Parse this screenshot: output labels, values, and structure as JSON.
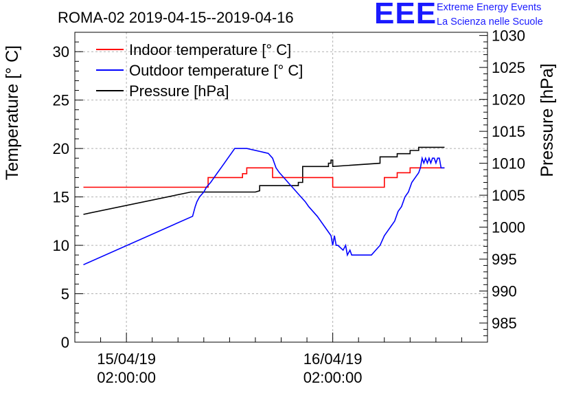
{
  "branding": {
    "letters": "EEE",
    "line1": "Extreme Energy Events",
    "line2": "La Scienza nelle Scuole",
    "color": "#1a1aff"
  },
  "chart_data": {
    "type": "line",
    "title": "ROMA-02 2019-04-15--2019-04-16",
    "ylabel": "Temperature [° C]",
    "y2label": "Pressure [hPa]",
    "ylim": [
      0,
      32
    ],
    "y2lim": [
      982,
      1030.5
    ],
    "yticks": [
      0,
      5,
      10,
      15,
      20,
      25,
      30
    ],
    "y2ticks": [
      985,
      990,
      995,
      1000,
      1005,
      1010,
      1015,
      1020,
      1025,
      1030
    ],
    "xlim": [
      -6,
      42
    ],
    "x_unit": "hours from 15/04/19 02:00:00",
    "xticks": [
      {
        "x": 0,
        "date": "15/04/19",
        "time": "02:00:00"
      },
      {
        "x": 24,
        "date": "16/04/19",
        "time": "02:00:00"
      }
    ],
    "grid": true,
    "legend_position": "top-left",
    "series": [
      {
        "name": "Indoor temperature [° C]",
        "axis": "left",
        "color": "#ff0000",
        "x": [
          -5,
          4,
          9.5,
          9.5,
          13.5,
          13.5,
          14,
          14,
          17,
          17,
          24,
          24,
          24.5,
          24.5,
          30,
          30,
          31.5,
          31.5,
          33,
          33,
          37
        ],
        "y": [
          16,
          16,
          16,
          17,
          17,
          17.4,
          17.4,
          18,
          18,
          17,
          17,
          16,
          16,
          16,
          16,
          17,
          17,
          17.5,
          17.5,
          18,
          18
        ]
      },
      {
        "name": "Outdoor temperature [° C]",
        "axis": "left",
        "color": "#0000ff",
        "x": [
          -5,
          7.7,
          8,
          8.2,
          8.5,
          9,
          9.3,
          9.8,
          10.2,
          10.6,
          11,
          11.4,
          11.8,
          12.2,
          12.6,
          13,
          14,
          16.5,
          17,
          17.4,
          17.8,
          18.3,
          18.8,
          19.3,
          19.8,
          20.3,
          20.8,
          21.2,
          21.7,
          22.2,
          23.8,
          24,
          24.2,
          24.4,
          24.6,
          25.2,
          25.5,
          25.7,
          26,
          26.2,
          28.5,
          29,
          29.5,
          30,
          30.4,
          30.8,
          31.2,
          31.6,
          32,
          32.4,
          32.8,
          33.2,
          33.6,
          34,
          34.2,
          34.4,
          34.6,
          34.8,
          35,
          35.2,
          35.4,
          35.6,
          35.8,
          36,
          36.2,
          36.4,
          36.6,
          37
        ],
        "y": [
          8,
          13,
          14,
          14.5,
          15,
          15.5,
          16,
          16.5,
          17,
          17.5,
          18,
          18.5,
          19,
          19.5,
          20,
          20,
          20,
          19.5,
          19,
          18,
          17.5,
          17,
          16.5,
          16,
          15.5,
          15,
          14.5,
          14,
          13.5,
          13,
          11,
          10,
          11,
          10,
          10,
          9.5,
          10,
          9,
          9.5,
          9,
          9,
          9.5,
          10,
          11,
          11.5,
          12,
          12.5,
          13.5,
          14,
          15,
          15.5,
          16.5,
          17,
          17.5,
          18,
          19,
          18.5,
          19,
          18.5,
          19,
          18.5,
          19,
          19,
          18.5,
          19,
          19,
          18,
          18
        ]
      },
      {
        "name": "Pressure [hPa]",
        "axis": "right",
        "color": "#000000",
        "x": [
          -5,
          7.5,
          15,
          15.5,
          15.5,
          20,
          20,
          20.5,
          20.5,
          23.5,
          23.5,
          23.8,
          23.8,
          24,
          24,
          29.5,
          29.5,
          31.5,
          31.5,
          33,
          33,
          34,
          34,
          37
        ],
        "y": [
          1002,
          1005.5,
          1005.5,
          1005.7,
          1006.5,
          1006.5,
          1007,
          1007,
          1009.5,
          1009.5,
          1010,
          1010,
          1010.5,
          1010.5,
          1009.5,
          1010,
          1011,
          1011,
          1011.5,
          1011.5,
          1012,
          1012,
          1012.5,
          1012.5
        ]
      }
    ]
  }
}
